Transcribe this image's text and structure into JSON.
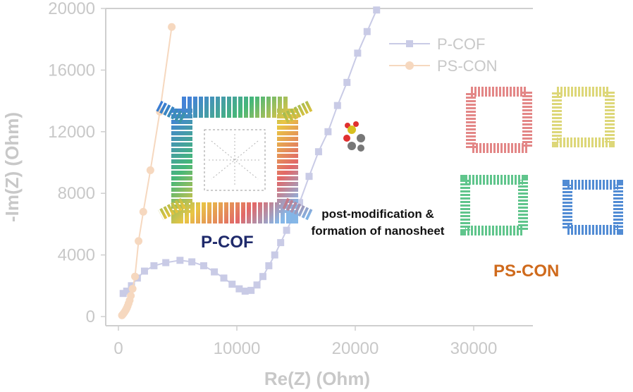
{
  "chart_data": {
    "type": "scatter",
    "xlabel": "Re(Z) (Ohm)",
    "ylabel": "-Im(Z) (Ohm)",
    "xlim": [
      0,
      35000
    ],
    "ylim": [
      0,
      20000
    ],
    "xticks": [
      0,
      10000,
      20000,
      30000
    ],
    "yticks": [
      0,
      4000,
      8000,
      12000,
      16000,
      20000
    ],
    "grid": false,
    "legend_position": "top-right",
    "series": [
      {
        "name": "P-COF",
        "color": "#c9cbe6",
        "marker": "square",
        "x": [
          400,
          700,
          1100,
          1600,
          2200,
          3000,
          4000,
          5200,
          6200,
          7200,
          8100,
          8900,
          9600,
          10200,
          10700,
          11200,
          11700,
          12200,
          12700,
          13200,
          13700,
          14200,
          14800,
          15300,
          16100,
          16900,
          17700,
          18500,
          19300,
          20200,
          21000,
          21800
        ],
        "y": [
          1500,
          1650,
          2000,
          2500,
          2950,
          3300,
          3500,
          3650,
          3550,
          3300,
          2900,
          2500,
          2100,
          1800,
          1650,
          1700,
          2050,
          2600,
          3300,
          4000,
          4800,
          5600,
          6500,
          7400,
          9100,
          10700,
          12000,
          13700,
          15200,
          17100,
          18500,
          19900
        ]
      },
      {
        "name": "PS-CON",
        "color": "#f6d8bf",
        "marker": "circle",
        "x": [
          300,
          380,
          460,
          540,
          620,
          700,
          780,
          860,
          950,
          1050,
          1200,
          1400,
          1700,
          2100,
          2700,
          3500,
          4500
        ],
        "y": [
          80,
          150,
          230,
          320,
          420,
          540,
          680,
          850,
          1050,
          1350,
          1800,
          2600,
          4900,
          6800,
          9500,
          13300,
          18800
        ]
      }
    ],
    "annotations": [
      {
        "id": "pcof",
        "text": "P-COF",
        "color": "#1f2a6b"
      },
      {
        "id": "mod1",
        "text": "post-modification &",
        "color": "#111111"
      },
      {
        "id": "mod2",
        "text": "formation of nanosheet",
        "color": "#111111"
      },
      {
        "id": "pscon",
        "text": "PS-CON",
        "color": "#cf6a1c"
      }
    ]
  }
}
